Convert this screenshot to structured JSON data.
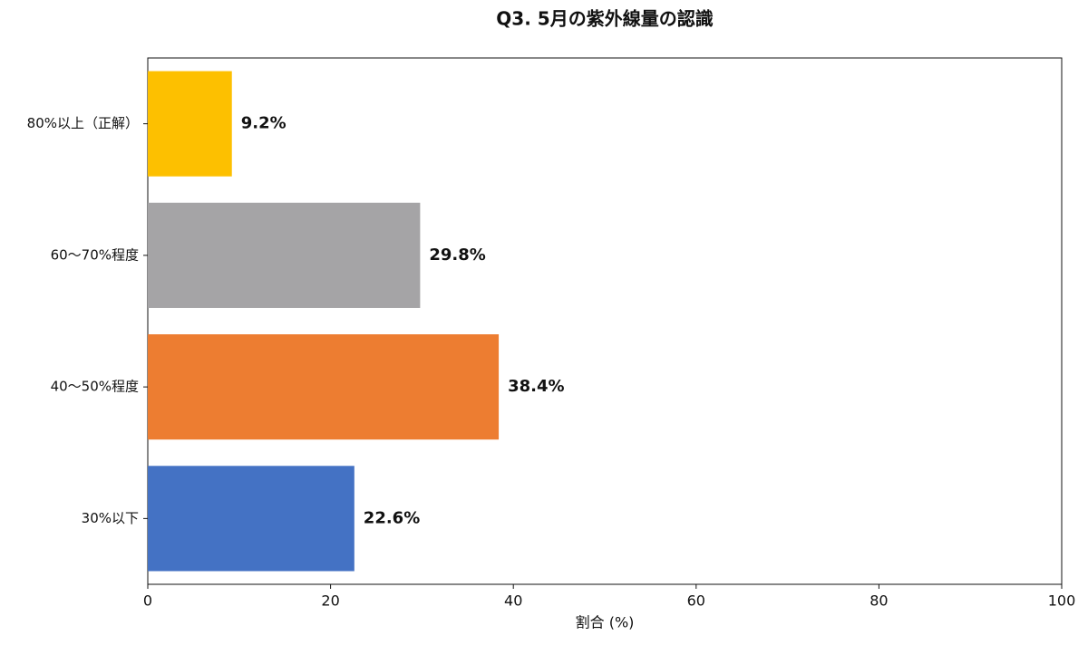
{
  "chart_data": {
    "type": "barh",
    "title": "Q3. 5月の紫外線量の認識",
    "x_label": "割合 (%)",
    "categories": [
      "80%以上（正解）",
      "60〜70%程度",
      "40〜50%程度",
      "30%以下"
    ],
    "values": [
      9.2,
      29.8,
      38.4,
      22.6
    ],
    "value_labels": [
      "9.2%",
      "29.8%",
      "38.4%",
      "22.6%"
    ],
    "colors": [
      "#fdc000",
      "#a5a4a6",
      "#ed7d31",
      "#4472c4"
    ],
    "xlim": [
      0,
      100
    ],
    "xticks": [
      0,
      20,
      40,
      60,
      80,
      100
    ],
    "grid": false
  }
}
